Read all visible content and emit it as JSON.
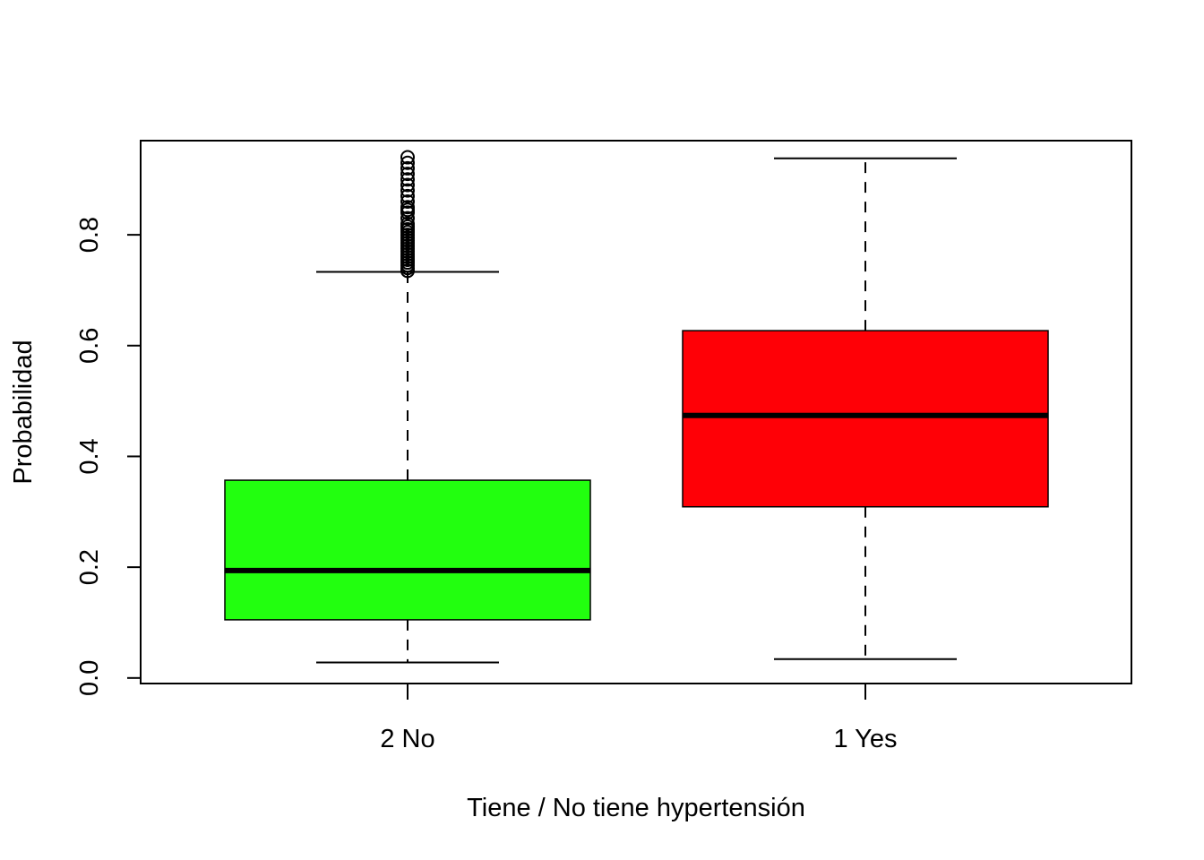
{
  "chart_data": {
    "type": "box",
    "title": "",
    "xlabel": "Tiene / No tiene hypertensión",
    "ylabel": "Probabilidad",
    "ylim": [
      -0.01,
      0.97
    ],
    "yticks": [
      0.0,
      0.2,
      0.4,
      0.6,
      0.8
    ],
    "ytick_labels": [
      "0.0",
      "0.2",
      "0.4",
      "0.6",
      "0.8"
    ],
    "grid": false,
    "categories": [
      "2 No",
      "1 Yes"
    ],
    "boxes": [
      {
        "label": "2 No",
        "color": "#22ff0f",
        "whisker_low": 0.028,
        "q1": 0.105,
        "median": 0.194,
        "q3": 0.357,
        "whisker_high": 0.733,
        "outliers": [
          0.735,
          0.74,
          0.745,
          0.75,
          0.755,
          0.76,
          0.765,
          0.77,
          0.775,
          0.78,
          0.785,
          0.79,
          0.795,
          0.8,
          0.805,
          0.81,
          0.815,
          0.82,
          0.83,
          0.84,
          0.845,
          0.85,
          0.86,
          0.87,
          0.88,
          0.89,
          0.9,
          0.91,
          0.92,
          0.93,
          0.94
        ]
      },
      {
        "label": "1 Yes",
        "color": "#ff0006",
        "whisker_low": 0.034,
        "q1": 0.309,
        "median": 0.474,
        "q3": 0.627,
        "whisker_high": 0.938,
        "outliers": []
      }
    ]
  }
}
